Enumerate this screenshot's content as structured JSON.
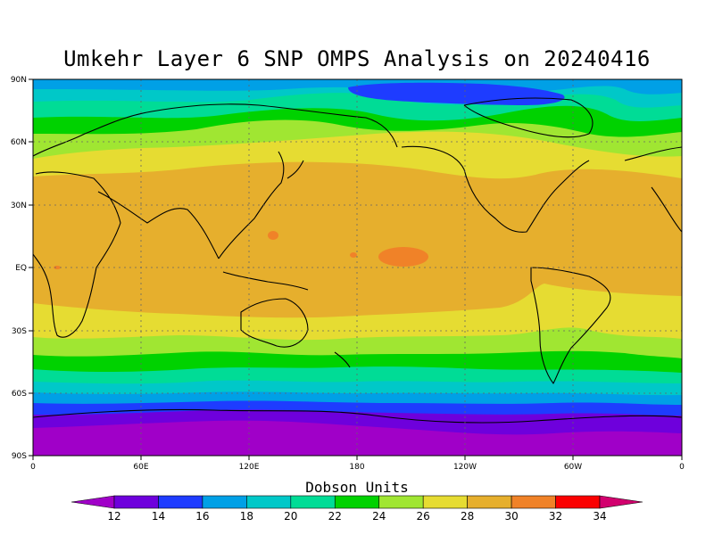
{
  "title": "Umkehr Layer 6 SNP OMPS Analysis on 20240416",
  "colorbar": {
    "title": "Dobson Units",
    "levels": [
      "12",
      "14",
      "16",
      "18",
      "20",
      "22",
      "24",
      "26",
      "28",
      "30",
      "32",
      "34"
    ],
    "colors": [
      "#a000c8",
      "#6e00dc",
      "#1e3cff",
      "#00a0e6",
      "#00c8c8",
      "#00dc96",
      "#00d200",
      "#a0e632",
      "#e6dc32",
      "#e6af2d",
      "#f08228",
      "#fa0000",
      "#d2006e"
    ]
  },
  "axes": {
    "lat_labels": [
      "90N",
      "60N",
      "30N",
      "EQ",
      "30S",
      "60S",
      "90S"
    ],
    "lon_labels": [
      "0",
      "60E",
      "120E",
      "180",
      "120W",
      "60W",
      "0"
    ]
  },
  "map_layers": {
    "lower_value_note": "values increase from poles toward tropics"
  }
}
